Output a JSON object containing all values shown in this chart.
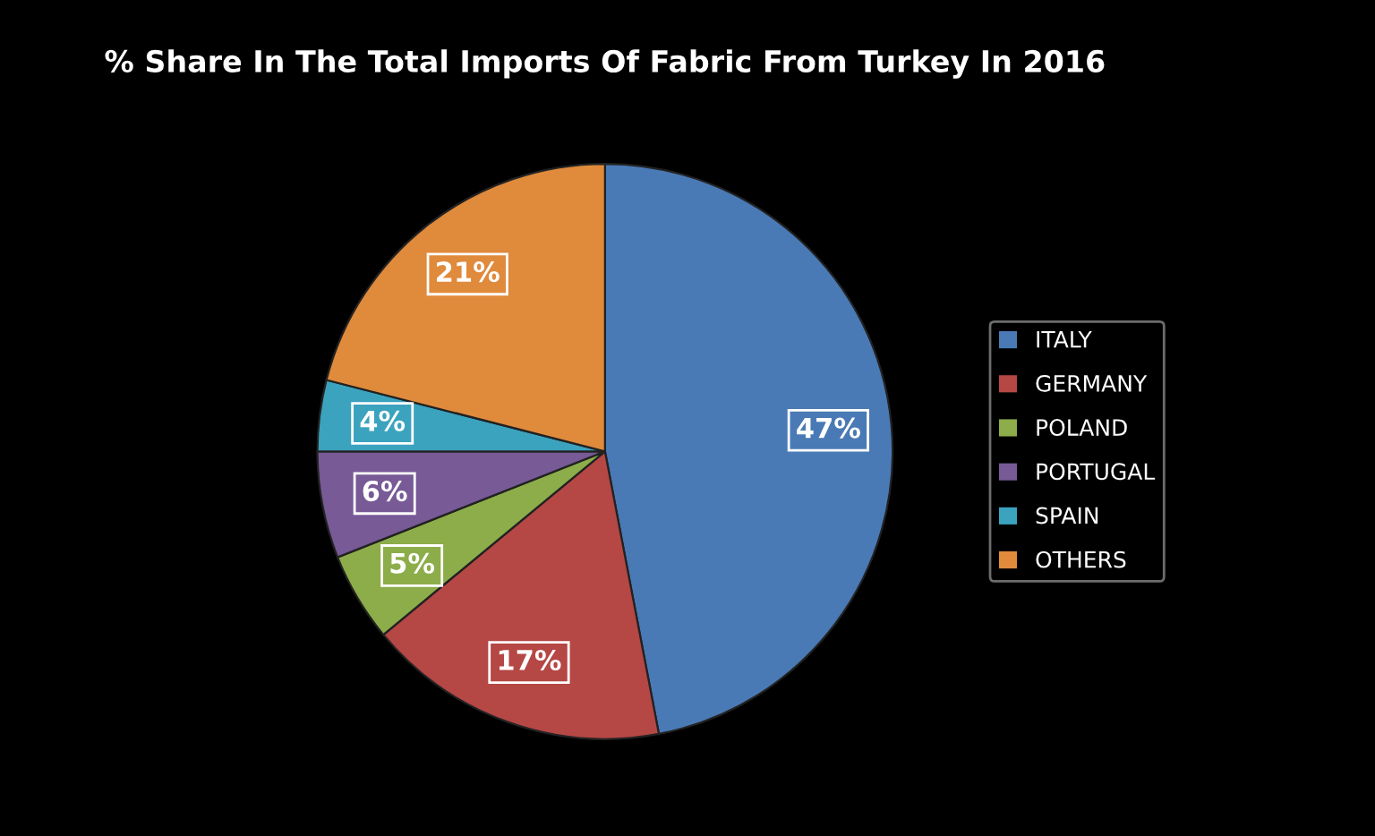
{
  "chart_data": {
    "type": "pie",
    "title": "% Share In The Total Imports Of Fabric From Turkey In 2016",
    "categories": [
      "ITALY",
      "GERMANY",
      "POLAND",
      "PORTUGAL",
      "SPAIN",
      "OTHERS"
    ],
    "values": [
      47,
      17,
      5,
      6,
      4,
      21
    ],
    "colors": [
      "#4a7ab5",
      "#b54745",
      "#8cad4a",
      "#775a96",
      "#3ba3be",
      "#e08a3c"
    ],
    "value_labels": [
      "47%",
      "17%",
      "5%",
      "6%",
      "4%",
      "21%"
    ],
    "legend": "right"
  }
}
